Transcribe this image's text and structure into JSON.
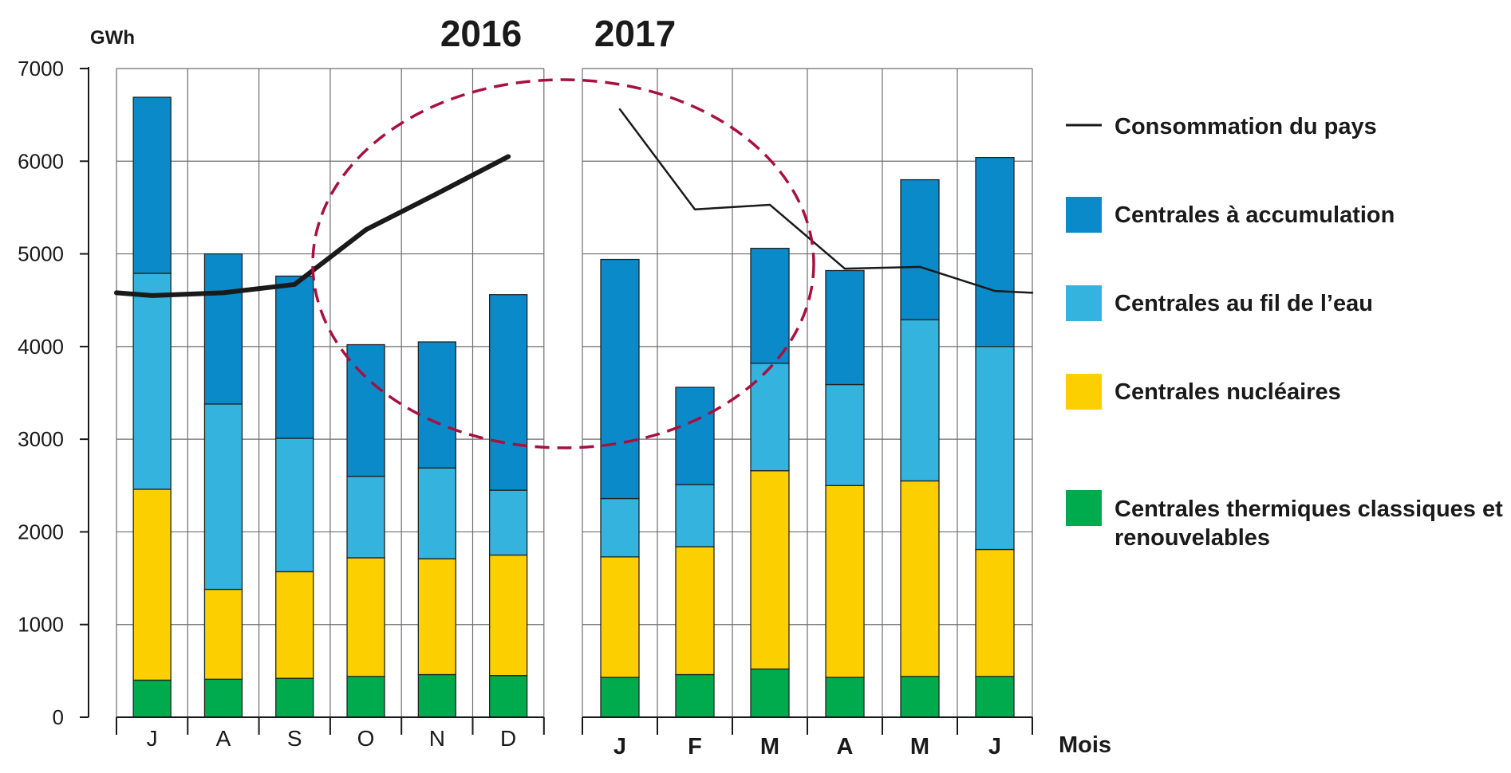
{
  "chart_data": {
    "type": "bar",
    "stacked": true,
    "y_unit": "GWh",
    "x_unit": "Mois",
    "ylim": [
      0,
      7000
    ],
    "yticks": [
      "0",
      "1000",
      "2000",
      "3000",
      "4000",
      "5000",
      "6000",
      "7000"
    ],
    "grid": true,
    "colors": {
      "thermique": "#00ab4e",
      "nucleaire": "#fccf00",
      "fil_eau": "#33b3dd",
      "accumulation": "#0a8ac8",
      "consommation": "#1a1a1a",
      "highlight": "#a8103f"
    },
    "legend": {
      "consommation": "Consommation du pays",
      "accumulation": "Centrales à accumulation",
      "fil_eau": "Centrales au fil de l’eau",
      "nucleaire": "Centrales nucléaires",
      "thermique_line1": "Centrales thermiques classiques et",
      "thermique_line2": "renouvelables"
    },
    "panels": [
      {
        "year": "2016",
        "categories": [
          "J",
          "A",
          "S",
          "O",
          "N",
          "D"
        ],
        "thermique": [
          400,
          410,
          420,
          440,
          460,
          450
        ],
        "nucleaire": [
          2060,
          970,
          1150,
          1280,
          1250,
          1300
        ],
        "fil_eau": [
          2330,
          2000,
          1440,
          880,
          980,
          700
        ],
        "accumulation": [
          1900,
          1620,
          1750,
          1420,
          1360,
          2110
        ],
        "consommation": [
          4550,
          4580,
          4670,
          5260,
          5650,
          6050
        ]
      },
      {
        "year": "2017",
        "categories": [
          "J",
          "F",
          "M",
          "A",
          "M",
          "J"
        ],
        "thermique": [
          430,
          460,
          520,
          430,
          440,
          440
        ],
        "nucleaire": [
          1300,
          1380,
          2140,
          2070,
          2110,
          1370
        ],
        "fil_eau": [
          630,
          670,
          1160,
          1090,
          1740,
          2190
        ],
        "accumulation": [
          2580,
          1050,
          1240,
          1230,
          1510,
          2040
        ],
        "consommation": [
          6560,
          5480,
          5530,
          4840,
          4860,
          4600
        ]
      }
    ]
  }
}
